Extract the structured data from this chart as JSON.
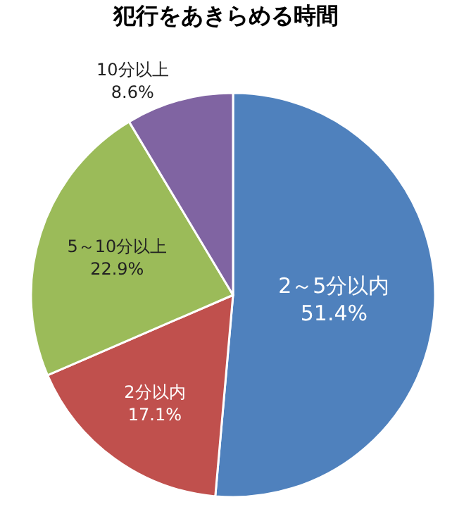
{
  "chart_data": {
    "type": "pie",
    "title": "犯行をあきらめる時間",
    "categories": [
      "2～5分以内",
      "2分以内",
      "5～10分以上",
      "10分以上"
    ],
    "values": [
      51.4,
      17.1,
      22.9,
      8.6
    ],
    "value_labels": [
      "51.4%",
      "17.1%",
      "22.9%",
      "8.6%"
    ],
    "colors": [
      "#4f81bd",
      "#c0504d",
      "#9bbb59",
      "#8064a2"
    ],
    "legend": false
  }
}
